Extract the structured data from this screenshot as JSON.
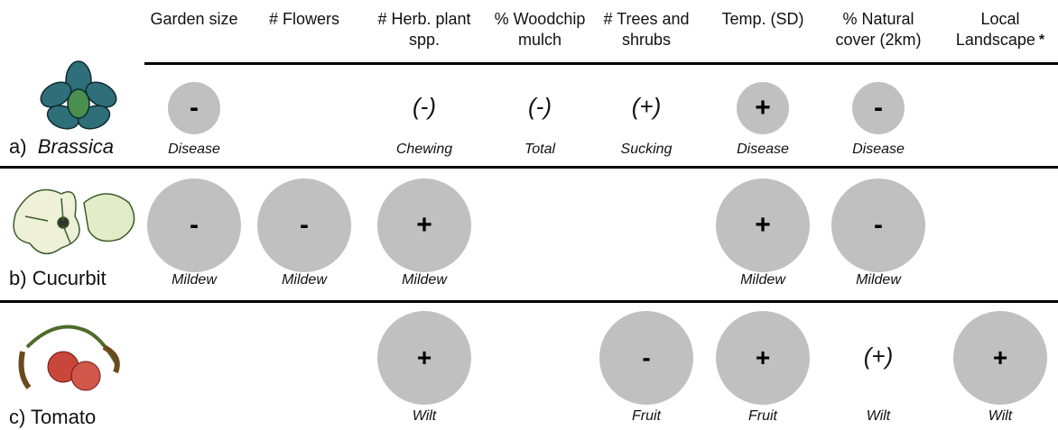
{
  "header": {
    "columns": [
      "Garden size",
      "# Flowers",
      "# Herb. plant spp.",
      "% Woodchip mulch",
      "# Trees and shrubs",
      "Temp. (SD)",
      "% Natural cover (2km)",
      "Local Landscape"
    ],
    "note": "*"
  },
  "rows": [
    {
      "letter": "a)",
      "name": "Brassica",
      "cells": [
        {
          "sign": "-",
          "label": "Disease"
        },
        null,
        {
          "sign": "(-)",
          "label": "Chewing"
        },
        {
          "sign": "(-)",
          "label": "Total"
        },
        {
          "sign": "(+)",
          "label": "Sucking"
        },
        {
          "sign": "+",
          "label": "Disease"
        },
        {
          "sign": "-",
          "label": "Disease"
        },
        null
      ]
    },
    {
      "letter": "b)",
      "name": "Cucurbit",
      "cells": [
        {
          "sign": "-",
          "label": "Mildew"
        },
        {
          "sign": "-",
          "label": "Mildew"
        },
        {
          "sign": "+",
          "label": "Mildew"
        },
        null,
        null,
        {
          "sign": "+",
          "label": "Mildew"
        },
        {
          "sign": "-",
          "label": "Mildew"
        },
        null
      ]
    },
    {
      "letter": "c)",
      "name": "Tomato",
      "cells": [
        null,
        null,
        {
          "sign": "+",
          "label": "Wilt"
        },
        null,
        {
          "sign": "-",
          "label": "Fruit"
        },
        {
          "sign": "+",
          "label": "Fruit"
        },
        {
          "sign": "(+)",
          "label": "Wilt"
        },
        {
          "sign": "+",
          "label": "Wilt"
        }
      ]
    }
  ]
}
